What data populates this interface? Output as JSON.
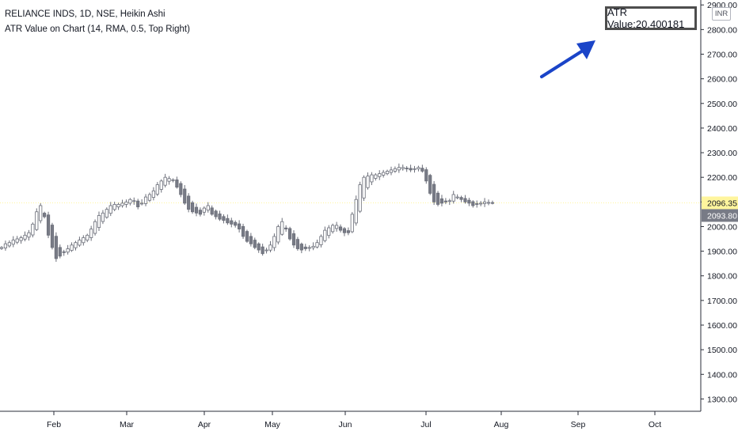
{
  "legend": {
    "line1": "RELIANCE INDS, 1D, NSE, Heikin Ashi",
    "line2": "ATR Value on Chart (14, RMA, 0.5, Top Right)"
  },
  "atr_label": "ATR Value:20.400181",
  "currency": "INR",
  "colors": {
    "up": "#ffffff",
    "down": "#787b86",
    "outline": "#6b6e79",
    "last_price_bg": "#fff59d",
    "current_price_bg": "#787b86",
    "arrow": "#1a44c8",
    "price_line": "#fff59d"
  },
  "chart_data": {
    "type": "candlestick",
    "style": "Heikin Ashi",
    "ylim": [
      1250,
      2920
    ],
    "yticks": [
      1300,
      1400,
      1500,
      1600,
      1700,
      1800,
      1900,
      2000,
      2100,
      2200,
      2300,
      2400,
      2500,
      2600,
      2700,
      2800,
      2900
    ],
    "ytick_labels": [
      "1300.00",
      "1400.00",
      "1500.00",
      "1600.00",
      "1700.00",
      "1800.00",
      "1900.00",
      "2000.00",
      "2100.00",
      "2200.00",
      "2300.00",
      "2400.00",
      "2500.00",
      "2600.00",
      "2700.00",
      "2800.00",
      "2900.00"
    ],
    "xticks": [
      "Feb",
      "Mar",
      "Apr",
      "May",
      "Jun",
      "Jul",
      "Aug",
      "Sep",
      "Oct"
    ],
    "price_labels": {
      "last": "2096.35",
      "current": "2093.80"
    },
    "price_values": {
      "last": 2096.35,
      "current": 2093.8
    },
    "close_series": [
      1915,
      1930,
      1935,
      1945,
      1950,
      1955,
      1965,
      1975,
      2010,
      2060,
      2085,
      2040,
      1965,
      1915,
      1870,
      1880,
      1895,
      1910,
      1925,
      1935,
      1945,
      1955,
      1965,
      1990,
      2020,
      2045,
      2055,
      2070,
      2085,
      2090,
      2090,
      2095,
      2100,
      2110,
      2105,
      2080,
      2095,
      2120,
      2130,
      2145,
      2170,
      2185,
      2200,
      2195,
      2190,
      2160,
      2130,
      2095,
      2070,
      2060,
      2055,
      2050,
      2075,
      2085,
      2050,
      2040,
      2030,
      2025,
      2015,
      2010,
      2005,
      1990,
      1960,
      1940,
      1930,
      1915,
      1905,
      1890,
      1905,
      1925,
      1960,
      2000,
      2020,
      1990,
      1950,
      1925,
      1910,
      1905,
      1910,
      1915,
      1920,
      1935,
      1960,
      1985,
      1995,
      2005,
      2005,
      1985,
      1975,
      1975,
      2050,
      2110,
      2170,
      2200,
      2205,
      2210,
      2210,
      2215,
      2220,
      2225,
      2230,
      2235,
      2240,
      2240,
      2235,
      2230,
      2235,
      2240,
      2225,
      2185,
      2135,
      2100,
      2090,
      2095,
      2100,
      2105,
      2130,
      2120,
      2110,
      2100,
      2095,
      2085,
      2090,
      2095,
      2100,
      2098,
      2096
    ]
  }
}
